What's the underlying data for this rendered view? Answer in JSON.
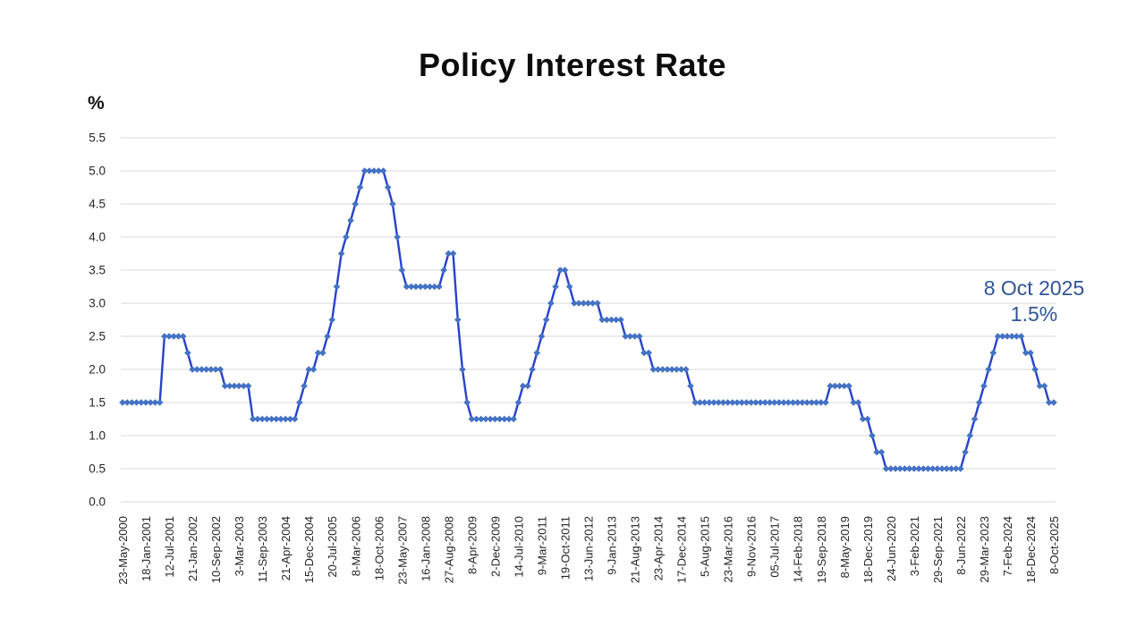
{
  "title": "Policy Interest Rate",
  "y_axis_unit": "%",
  "annotation": {
    "date": "8 Oct 2025",
    "rate": "1.5%",
    "color": "#305496"
  },
  "colors": {
    "line": "#2743CB",
    "marker": "#4472C4",
    "grid": "#D9D9D9",
    "tick_text": "#262626",
    "title_text": "#0d0d0d"
  },
  "chart_data": {
    "type": "line",
    "title": "Policy Interest Rate",
    "xlabel": "",
    "ylabel": "%",
    "ylim": [
      0.0,
      5.5
    ],
    "y_tick_step": 0.5,
    "y_tick_labels": [
      "5.5",
      "5.0",
      "4.5",
      "4.0",
      "3.5",
      "3.0",
      "2.5",
      "2.0",
      "1.5",
      "1.0",
      "0.5",
      "0.0"
    ],
    "grid": true,
    "legend": "none",
    "marker": "diamond",
    "label_every_n_points": 5,
    "x_tick_labels": [
      "23-May-2000",
      "18-Jan-2001",
      "12-Jul-2001",
      "21-Jan-2002",
      "10-Sep-2002",
      "3-Mar-2003",
      "11-Sep-2003",
      "21-Apr-2004",
      "15-Dec-2004",
      "20-Jul-2005",
      "8-Mar-2006",
      "18-Oct-2006",
      "23-May-2007",
      "16-Jan-2008",
      "27-Aug-2008",
      "8-Apr-2009",
      "2-Dec-2009",
      "14-Jul-2010",
      "9-Mar-2011",
      "19-Oct-2011",
      "13-Jun-2012",
      "9-Jan-2013",
      "21-Aug-2013",
      "23-Apr-2014",
      "17-Dec-2014",
      "5-Aug-2015",
      "23-Mar-2016",
      "9-Nov-2016",
      "05-Jul-2017",
      "14-Feb-2018",
      "19-Sep-2018",
      "8-May-2019",
      "18-Dec-2019",
      "24-Jun-2020",
      "3-Feb-2021",
      "29-Sep-2021",
      "8-Jun-2022",
      "29-Mar-2023",
      "7-Feb-2024",
      "18-Dec-2024",
      "8-Oct-2025"
    ],
    "values": [
      1.5,
      1.5,
      1.5,
      1.5,
      1.5,
      1.5,
      1.5,
      1.5,
      1.5,
      2.5,
      2.5,
      2.5,
      2.5,
      2.5,
      2.25,
      2,
      2,
      2,
      2,
      2,
      2,
      2,
      1.75,
      1.75,
      1.75,
      1.75,
      1.75,
      1.75,
      1.25,
      1.25,
      1.25,
      1.25,
      1.25,
      1.25,
      1.25,
      1.25,
      1.25,
      1.25,
      1.5,
      1.75,
      2,
      2,
      2.25,
      2.25,
      2.5,
      2.75,
      3.25,
      3.75,
      4,
      4.25,
      4.5,
      4.75,
      5,
      5,
      5,
      5,
      5,
      4.75,
      4.5,
      4,
      3.5,
      3.25,
      3.25,
      3.25,
      3.25,
      3.25,
      3.25,
      3.25,
      3.25,
      3.5,
      3.75,
      3.75,
      2.75,
      2,
      1.5,
      1.25,
      1.25,
      1.25,
      1.25,
      1.25,
      1.25,
      1.25,
      1.25,
      1.25,
      1.25,
      1.5,
      1.75,
      1.75,
      2,
      2.25,
      2.5,
      2.75,
      3,
      3.25,
      3.5,
      3.5,
      3.25,
      3,
      3,
      3,
      3,
      3,
      3,
      2.75,
      2.75,
      2.75,
      2.75,
      2.75,
      2.5,
      2.5,
      2.5,
      2.5,
      2.25,
      2.25,
      2,
      2,
      2,
      2,
      2,
      2,
      2,
      2,
      1.75,
      1.5,
      1.5,
      1.5,
      1.5,
      1.5,
      1.5,
      1.5,
      1.5,
      1.5,
      1.5,
      1.5,
      1.5,
      1.5,
      1.5,
      1.5,
      1.5,
      1.5,
      1.5,
      1.5,
      1.5,
      1.5,
      1.5,
      1.5,
      1.5,
      1.5,
      1.5,
      1.5,
      1.5,
      1.5,
      1.75,
      1.75,
      1.75,
      1.75,
      1.75,
      1.5,
      1.5,
      1.25,
      1.25,
      1,
      0.75,
      0.75,
      0.5,
      0.5,
      0.5,
      0.5,
      0.5,
      0.5,
      0.5,
      0.5,
      0.5,
      0.5,
      0.5,
      0.5,
      0.5,
      0.5,
      0.5,
      0.5,
      0.5,
      0.75,
      1,
      1.25,
      1.5,
      1.75,
      2,
      2.25,
      2.5,
      2.5,
      2.5,
      2.5,
      2.5,
      2.5,
      2.25,
      2.25,
      2,
      1.75,
      1.75,
      1.5,
      1.5
    ],
    "last_point_annotation": {
      "date": "8 Oct 2025",
      "value_label": "1.5%"
    }
  }
}
